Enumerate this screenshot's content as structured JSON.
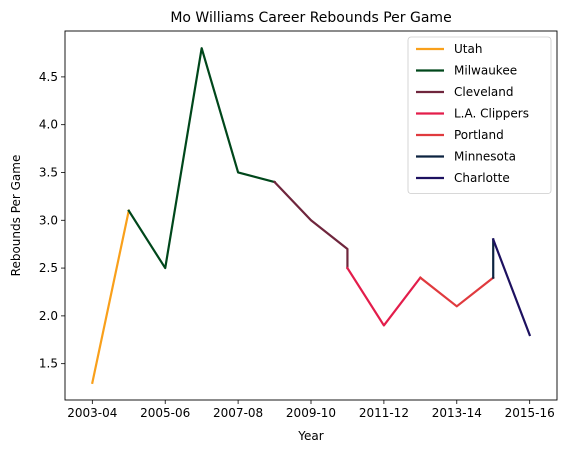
{
  "chart_data": {
    "type": "line",
    "title": "Mo Williams Career Rebounds Per Game",
    "xlabel": "Year",
    "ylabel": "Rebounds Per Game",
    "x_ticks": [
      "2003-04",
      "2005-06",
      "2007-08",
      "2009-10",
      "2011-12",
      "2013-14",
      "2015-16"
    ],
    "y_ticks": [
      "1.5",
      "2.0",
      "2.5",
      "3.0",
      "3.5",
      "4.0",
      "4.5"
    ],
    "xlim": [
      -0.75,
      12.75
    ],
    "ylim": [
      1.12,
      4.98
    ],
    "grid": false,
    "legend_position": "top-right",
    "series": [
      {
        "name": "Utah",
        "color": "#F9A01B",
        "points": [
          [
            0,
            1.3
          ],
          [
            1,
            3.1
          ]
        ]
      },
      {
        "name": "Milwaukee",
        "color": "#00471B",
        "points": [
          [
            1,
            3.1
          ],
          [
            2,
            2.5
          ],
          [
            3,
            4.8
          ],
          [
            4,
            3.5
          ],
          [
            5,
            3.4
          ]
        ]
      },
      {
        "name": "Cleveland",
        "color": "#6F263D",
        "points": [
          [
            5,
            3.4
          ],
          [
            6,
            3.0
          ],
          [
            7,
            2.7
          ],
          [
            7,
            2.5
          ]
        ]
      },
      {
        "name": "L.A. Clippers",
        "color": "#E31D4B",
        "points": [
          [
            7,
            2.5
          ],
          [
            8,
            1.9
          ],
          [
            9,
            2.4
          ]
        ]
      },
      {
        "name": "Portland",
        "color": "#E03A3E",
        "points": [
          [
            9,
            2.4
          ],
          [
            10,
            2.1
          ],
          [
            11,
            2.4
          ]
        ]
      },
      {
        "name": "Minnesota",
        "color": "#0C2340",
        "points": [
          [
            11,
            2.4
          ],
          [
            11,
            2.8
          ]
        ]
      },
      {
        "name": "Charlotte",
        "color": "#1D1160",
        "points": [
          [
            11,
            2.8
          ],
          [
            12,
            1.8
          ]
        ]
      }
    ]
  }
}
